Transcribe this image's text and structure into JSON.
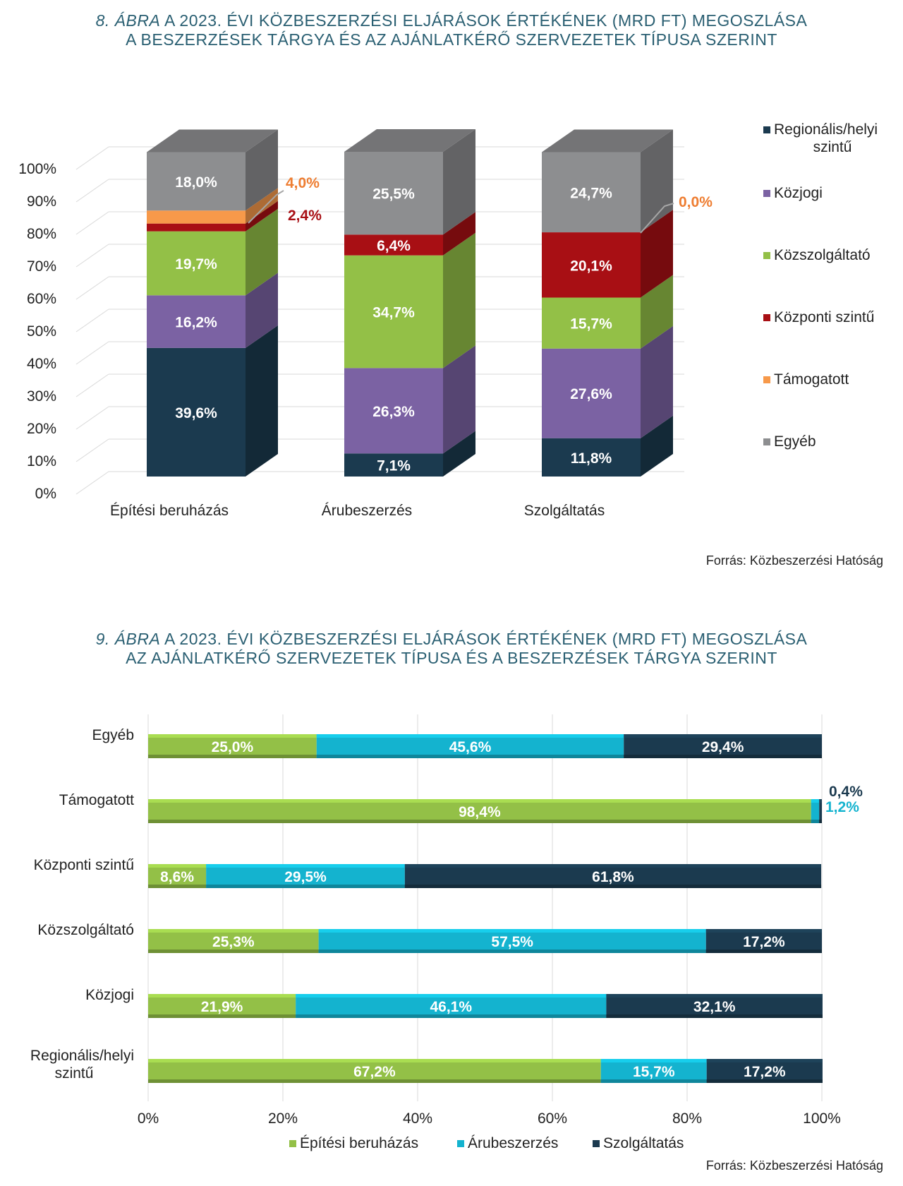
{
  "chart8": {
    "title_prefix": "8. ÁBRA",
    "title_line1": " A 2023. ÉVI KÖZBESZERZÉSI ELJÁRÁSOK ÉRTÉKÉNEK (MRD FT) MEGOSZLÁSA",
    "title_line2": "A BESZERZÉSEK TÁRGYA ÉS AZ AJÁNLATKÉRŐ SZERVEZETEK TÍPUSA SZERINT",
    "source": "Forrás: Közbeszerzési Hatóság"
  },
  "chart9": {
    "title_prefix": "9. ÁBRA",
    "title_line1": " A 2023. ÉVI KÖZBESZERZÉSI ELJÁRÁSOK ÉRTÉKÉNEK (MRD FT) MEGOSZLÁSA",
    "title_line2": "AZ AJÁNLATKÉRŐ SZERVEZETEK TÍPUSA ÉS A BESZERZÉSEK TÁRGYA SZERINT",
    "source": "Forrás: Közbeszerzési Hatóság"
  },
  "chart_data": [
    {
      "type": "bar",
      "stacked": true,
      "orientation": "vertical",
      "style": "3d",
      "categories": [
        "Építési beruházás",
        "Árubeszerzés",
        "Szolgáltatás"
      ],
      "series": [
        {
          "name": "Regionális/helyi szintű",
          "color": "#1b3a4f",
          "values": [
            39.6,
            7.1,
            11.8
          ],
          "labels": [
            "39,6%",
            "7,1%",
            "11,8%"
          ]
        },
        {
          "name": "Közjogi",
          "color": "#7b62a3",
          "values": [
            16.2,
            26.3,
            27.6
          ],
          "labels": [
            "16,2%",
            "26,3%",
            "27,6%"
          ]
        },
        {
          "name": "Közszolgáltató",
          "color": "#93c047",
          "values": [
            19.7,
            34.7,
            15.7
          ],
          "labels": [
            "19,7%",
            "34,7%",
            "15,7%"
          ]
        },
        {
          "name": "Központi szintű",
          "color": "#a80f14",
          "values": [
            2.4,
            6.4,
            20.1
          ],
          "labels": [
            "2,4%",
            "6,4%",
            "20,1%"
          ]
        },
        {
          "name": "Támogatott",
          "color": "#f7994a",
          "values": [
            4.0,
            0.0,
            0.0
          ],
          "labels": [
            "4,0%",
            "",
            "0,0%"
          ]
        },
        {
          "name": "Egyéb",
          "color": "#8d8e90",
          "values": [
            18.0,
            25.5,
            24.7
          ],
          "labels": [
            "18,0%",
            "25,5%",
            "24,7%"
          ]
        }
      ],
      "yticks": [
        "0%",
        "10%",
        "20%",
        "30%",
        "40%",
        "50%",
        "60%",
        "70%",
        "80%",
        "90%",
        "100%"
      ],
      "ylim": [
        0,
        100
      ],
      "legend": "right",
      "grid": true
    },
    {
      "type": "bar",
      "stacked": true,
      "orientation": "horizontal",
      "categories": [
        "Egyéb",
        "Támogatott",
        "Központi szintű",
        "Közszolgáltató",
        "Közjogi",
        "Regionális/helyi szintű"
      ],
      "series": [
        {
          "name": "Építési beruházás",
          "color": "#93c047",
          "values": [
            25.0,
            98.4,
            8.6,
            25.3,
            21.9,
            67.2
          ],
          "labels": [
            "25,0%",
            "98,4%",
            "8,6%",
            "25,3%",
            "21,9%",
            "67,2%"
          ]
        },
        {
          "name": "Árubeszerzés",
          "color": "#14b3cf",
          "values": [
            45.6,
            1.2,
            29.5,
            57.5,
            46.1,
            15.7
          ],
          "labels": [
            "45,6%",
            "1,2%",
            "29,5%",
            "57,5%",
            "46,1%",
            "15,7%"
          ]
        },
        {
          "name": "Szolgáltatás",
          "color": "#1b3a4f",
          "values": [
            29.4,
            0.4,
            61.8,
            17.2,
            32.1,
            17.2
          ],
          "labels": [
            "29,4%",
            "0,4%",
            "61,8%",
            "17,2%",
            "32,1%",
            "17,2%"
          ]
        }
      ],
      "xticks": [
        "0%",
        "20%",
        "40%",
        "60%",
        "80%",
        "100%"
      ],
      "xlim": [
        0,
        100
      ],
      "legend": "bottom",
      "grid": true
    }
  ]
}
